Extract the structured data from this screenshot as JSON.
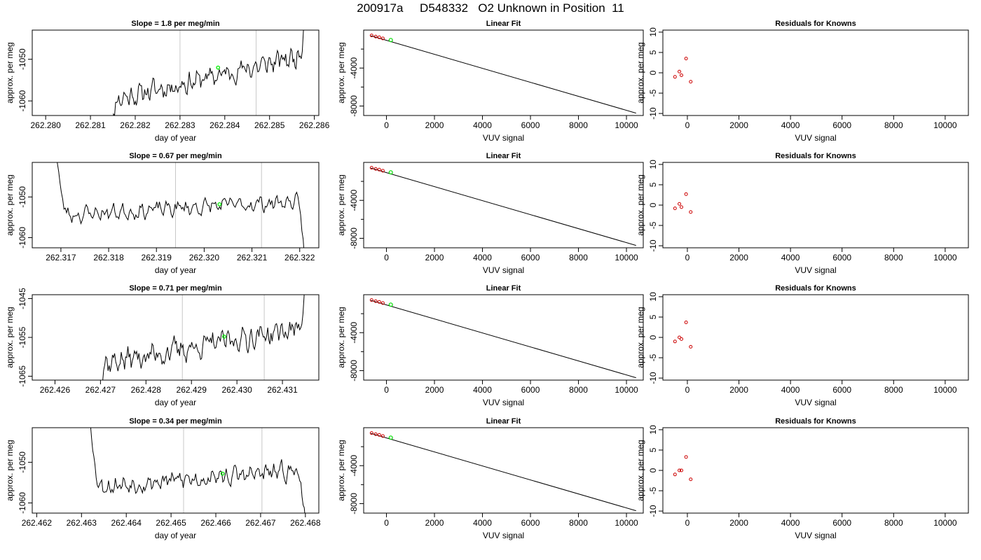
{
  "title": "200917a     D548332   O2 Unknown in Position  11",
  "chart_data": [
    {
      "panel": "slope-1",
      "type": "line",
      "title": "Slope =  1.8  per meg/min",
      "xlabel": "day of year",
      "ylabel": "approx. per meg",
      "xlim": [
        262.2797,
        262.2861
      ],
      "ylim": [
        -1063.5,
        -1043.0
      ],
      "xticks": [
        "262.280",
        "262.281",
        "262.282",
        "262.283",
        "262.284",
        "262.285",
        "262.286"
      ],
      "yticks": [
        "-1060",
        "-1050"
      ],
      "vlines": [
        262.283,
        262.2847
      ],
      "highlight": {
        "x": 262.28385,
        "y": -1052.0,
        "color": "#00ee00"
      },
      "trace": {
        "x_start": 262.2814,
        "x_end": 262.2858,
        "baseline_start": -1060.0,
        "baseline_end": -1049.0,
        "amplitude": 2.3,
        "seed": 11,
        "lead_in": "rise",
        "lead_out": "up"
      }
    },
    {
      "panel": "linear-fit-1",
      "type": "line",
      "title": "Linear Fit",
      "xlabel": "VUV signal",
      "ylabel": "approx. per meg",
      "xlim": [
        -950,
        10700
      ],
      "ylim": [
        -9000,
        0
      ],
      "xticks": [
        "0",
        "2000",
        "4000",
        "6000",
        "8000",
        "10000"
      ],
      "yticks": [
        "-8000",
        "-4000"
      ],
      "fit_line": {
        "x": [
          -650,
          10400
        ],
        "y": [
          -600,
          -8750
        ]
      },
      "knowns": {
        "x": [
          -620,
          -450,
          -300,
          -150
        ],
        "y": [
          -560,
          -680,
          -760,
          -880
        ]
      },
      "unknown": {
        "x": 180,
        "y": -1050
      }
    },
    {
      "panel": "residuals-1",
      "type": "scatter",
      "title": "Residuals for Knowns",
      "xlabel": "VUV signal",
      "ylabel": "approx. per meg",
      "xlim": [
        -950,
        10900
      ],
      "ylim": [
        -10.5,
        10.5
      ],
      "xticks": [
        "0",
        "2000",
        "4000",
        "6000",
        "8000",
        "10000"
      ],
      "yticks": [
        "-10",
        "-5",
        "0",
        "5",
        "10"
      ],
      "points": {
        "x": [
          -480,
          -310,
          -230,
          -50,
          130
        ],
        "y": [
          -1.0,
          0.3,
          -0.6,
          3.5,
          -2.2
        ]
      }
    },
    {
      "panel": "slope-2",
      "type": "line",
      "title": "Slope =  0.67  per meg/min",
      "xlabel": "day of year",
      "ylabel": "approx. per meg",
      "xlim": [
        262.3164,
        262.3224
      ],
      "ylim": [
        -1062.5,
        -1041.5
      ],
      "xticks": [
        "262.317",
        "262.318",
        "262.319",
        "262.320",
        "262.321",
        "262.322"
      ],
      "yticks": [
        "-1060",
        "-1050"
      ],
      "vlines": [
        262.3194,
        262.3212
      ],
      "highlight": {
        "x": 262.32032,
        "y": -1051.8,
        "color": "#00ee00"
      },
      "trace": {
        "x_start": 262.3169,
        "x_end": 262.3221,
        "baseline_start": -1054.5,
        "baseline_end": -1051.0,
        "amplitude": 1.8,
        "seed": 23,
        "lead_in": "fall",
        "lead_out": "down"
      }
    },
    {
      "panel": "linear-fit-2",
      "type": "line",
      "title": "Linear Fit",
      "xlabel": "VUV signal",
      "ylabel": "approx. per meg",
      "xlim": [
        -950,
        10700
      ],
      "ylim": [
        -9000,
        0
      ],
      "xticks": [
        "0",
        "2000",
        "4000",
        "6000",
        "8000",
        "10000"
      ],
      "yticks": [
        "-8000",
        "-4000"
      ],
      "fit_line": {
        "x": [
          -650,
          10400
        ],
        "y": [
          -600,
          -8750
        ]
      },
      "knowns": {
        "x": [
          -620,
          -450,
          -300,
          -150
        ],
        "y": [
          -560,
          -680,
          -760,
          -880
        ]
      },
      "unknown": {
        "x": 180,
        "y": -1050
      }
    },
    {
      "panel": "residuals-2",
      "type": "scatter",
      "title": "Residuals for Knowns",
      "xlabel": "VUV signal",
      "ylabel": "approx. per meg",
      "xlim": [
        -950,
        10900
      ],
      "ylim": [
        -10.5,
        10.5
      ],
      "xticks": [
        "0",
        "2000",
        "4000",
        "6000",
        "8000",
        "10000"
      ],
      "yticks": [
        "-10",
        "-5",
        "0",
        "5",
        "10"
      ],
      "points": {
        "x": [
          -480,
          -310,
          -230,
          -50,
          130
        ],
        "y": [
          -0.8,
          0.3,
          -0.5,
          2.7,
          -1.7
        ]
      }
    },
    {
      "panel": "slope-3",
      "type": "line",
      "title": "Slope =  0.71  per meg/min",
      "xlabel": "day of year",
      "ylabel": "approx. per meg",
      "xlim": [
        262.4255,
        262.4318
      ],
      "ylim": [
        -1066.0,
        -1044.0
      ],
      "xticks": [
        "262.426",
        "262.427",
        "262.428",
        "262.429",
        "262.430",
        "262.431"
      ],
      "yticks": [
        "-1065",
        "-1055",
        "-1045"
      ],
      "vlines": [
        262.4288,
        262.4306
      ],
      "highlight": {
        "x": 262.42972,
        "y": -1054.8,
        "color": "#00ee00"
      },
      "trace": {
        "x_start": 262.4269,
        "x_end": 262.4315,
        "baseline_start": -1062.0,
        "baseline_end": -1052.5,
        "amplitude": 2.8,
        "seed": 37,
        "lead_in": "rise",
        "lead_out": "up"
      }
    },
    {
      "panel": "linear-fit-3",
      "type": "line",
      "title": "Linear Fit",
      "xlabel": "VUV signal",
      "ylabel": "approx. per meg",
      "xlim": [
        -950,
        10700
      ],
      "ylim": [
        -9000,
        0
      ],
      "xticks": [
        "0",
        "2000",
        "4000",
        "6000",
        "8000",
        "10000"
      ],
      "yticks": [
        "-8000",
        "-4000"
      ],
      "fit_line": {
        "x": [
          -650,
          10400
        ],
        "y": [
          -600,
          -8750
        ]
      },
      "knowns": {
        "x": [
          -620,
          -450,
          -300,
          -150
        ],
        "y": [
          -560,
          -680,
          -760,
          -880
        ]
      },
      "unknown": {
        "x": 180,
        "y": -1050
      }
    },
    {
      "panel": "residuals-3",
      "type": "scatter",
      "title": "Residuals for Knowns",
      "xlabel": "VUV signal",
      "ylabel": "approx. per meg",
      "xlim": [
        -950,
        10900
      ],
      "ylim": [
        -10.5,
        10.5
      ],
      "xticks": [
        "0",
        "2000",
        "4000",
        "6000",
        "8000",
        "10000"
      ],
      "yticks": [
        "-10",
        "-5",
        "0",
        "5",
        "10"
      ],
      "points": {
        "x": [
          -480,
          -310,
          -230,
          -50,
          130
        ],
        "y": [
          -1.0,
          0.0,
          -0.4,
          3.7,
          -2.3
        ]
      }
    },
    {
      "panel": "slope-4",
      "type": "line",
      "title": "Slope =  0.34  per meg/min",
      "xlabel": "day of year",
      "ylabel": "approx. per meg",
      "xlim": [
        262.4619,
        262.4683
      ],
      "ylim": [
        -1062.5,
        -1041.5
      ],
      "xticks": [
        "262.462",
        "262.463",
        "262.464",
        "262.465",
        "262.466",
        "262.467",
        "262.468"
      ],
      "yticks": [
        "-1060",
        "-1050"
      ],
      "vlines": [
        262.46528,
        262.46703
      ],
      "highlight": {
        "x": 262.46615,
        "y": -1052.8,
        "color": "#00ee00"
      },
      "trace": {
        "x_start": 262.4632,
        "x_end": 262.468,
        "baseline_start": -1056.0,
        "baseline_end": -1052.0,
        "amplitude": 2.0,
        "seed": 53,
        "lead_in": "fall",
        "lead_out": "down"
      }
    },
    {
      "panel": "linear-fit-4",
      "type": "line",
      "title": "Linear Fit",
      "xlabel": "VUV signal",
      "ylabel": "approx. per meg",
      "xlim": [
        -950,
        10700
      ],
      "ylim": [
        -9000,
        0
      ],
      "xticks": [
        "0",
        "2000",
        "4000",
        "6000",
        "8000",
        "10000"
      ],
      "yticks": [
        "-8000",
        "-4000"
      ],
      "fit_line": {
        "x": [
          -650,
          10400
        ],
        "y": [
          -600,
          -8750
        ]
      },
      "knowns": {
        "x": [
          -620,
          -450,
          -300,
          -150
        ],
        "y": [
          -560,
          -680,
          -760,
          -880
        ]
      },
      "unknown": {
        "x": 180,
        "y": -1050
      }
    },
    {
      "panel": "residuals-4",
      "type": "scatter",
      "title": "Residuals for Knowns",
      "xlabel": "VUV signal",
      "ylabel": "approx. per meg",
      "xlim": [
        -950,
        10900
      ],
      "ylim": [
        -10.5,
        10.5
      ],
      "xticks": [
        "0",
        "2000",
        "4000",
        "6000",
        "8000",
        "10000"
      ],
      "yticks": [
        "-10",
        "-5",
        "0",
        "5",
        "10"
      ],
      "points": {
        "x": [
          -480,
          -310,
          -230,
          -50,
          130
        ],
        "y": [
          -1.0,
          0.0,
          0.0,
          3.3,
          -2.2
        ]
      }
    }
  ]
}
